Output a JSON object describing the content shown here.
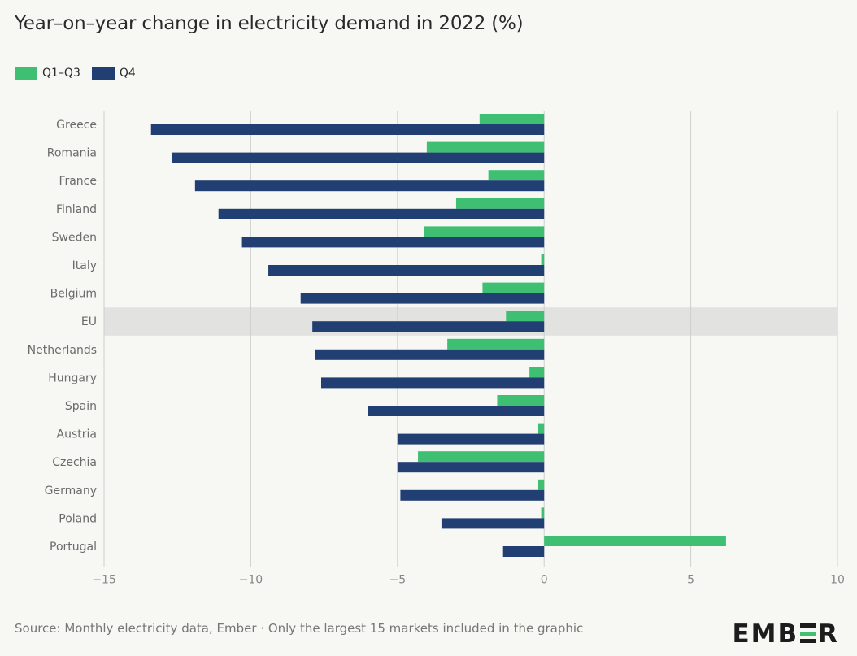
{
  "title": "Year–on–year change in electricity demand in 2022 (%)",
  "legend": [
    {
      "label": "Q1–Q3",
      "color": "#3fbf71"
    },
    {
      "label": "Q4",
      "color": "#223f73"
    }
  ],
  "source": "Source: Monthly electricity data, Ember · Only the largest 15 markets included in the graphic",
  "logo_text": "EMBER",
  "colors": {
    "q1q3": "#3fbf71",
    "q4": "#223f73",
    "highlight": "#e2e2e0",
    "grid": "#cfcfcf"
  },
  "chart_data": {
    "type": "bar",
    "orientation": "horizontal",
    "title": "Year–on–year change in electricity demand in 2022 (%)",
    "categories": [
      "Greece",
      "Romania",
      "France",
      "Finland",
      "Sweden",
      "Italy",
      "Belgium",
      "EU",
      "Netherlands",
      "Hungary",
      "Spain",
      "Austria",
      "Czechia",
      "Germany",
      "Poland",
      "Portugal"
    ],
    "highlighted_category": "EU",
    "series": [
      {
        "name": "Q1–Q3",
        "values": [
          -2.2,
          -4.0,
          -1.9,
          -3.0,
          -4.1,
          -0.1,
          -2.1,
          -1.3,
          -3.3,
          -0.5,
          -1.6,
          -0.2,
          -4.3,
          -0.2,
          -0.1,
          6.2
        ]
      },
      {
        "name": "Q4",
        "values": [
          -13.4,
          -12.7,
          -11.9,
          -11.1,
          -10.3,
          -9.4,
          -8.3,
          -7.9,
          -7.8,
          -7.6,
          -6.0,
          -5.0,
          -5.0,
          -4.9,
          -3.5,
          -1.4
        ]
      }
    ],
    "xlim": [
      -15,
      10
    ],
    "xticks": [
      "−15",
      "−10",
      "−5",
      "0",
      "5",
      "10"
    ],
    "xtick_values": [
      -15,
      -10,
      -5,
      0,
      5,
      10
    ],
    "grid": true,
    "legend_position": "top-left"
  }
}
